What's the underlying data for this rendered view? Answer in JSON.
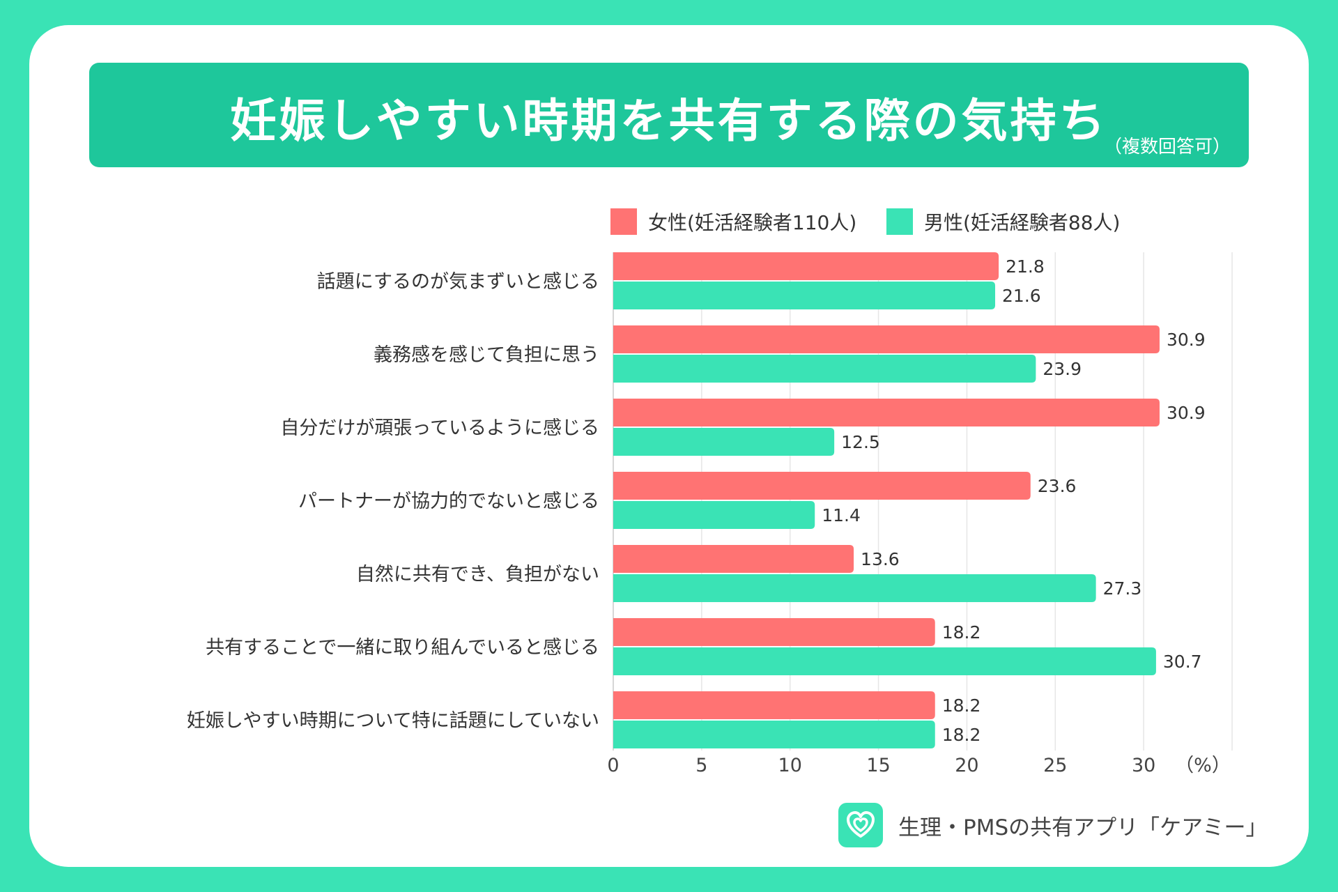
{
  "header": {
    "title": "妊娠しやすい時期を共有する際の気持ち",
    "note": "（複数回答可）"
  },
  "colors": {
    "background": "#3ae3b5",
    "banner": "#1ec79b",
    "female": "#ff7373",
    "male": "#3ae3b5"
  },
  "chart_data": {
    "type": "bar",
    "orientation": "horizontal",
    "categories": [
      "話題にするのが気まずいと感じる",
      "義務感を感じて負担に思う",
      "自分だけが頑張っているように感じる",
      "パートナーが協力的でないと感じる",
      "自然に共有でき、負担がない",
      "共有することで一緒に取り組んでいると感じる",
      "妊娠しやすい時期について特に話題にしていない"
    ],
    "series": [
      {
        "name": "女性(妊活経験者110人)",
        "values": [
          21.8,
          30.9,
          30.9,
          23.6,
          13.6,
          18.2,
          18.2
        ]
      },
      {
        "name": "男性(妊活経験者88人)",
        "values": [
          21.6,
          23.9,
          12.5,
          11.4,
          27.3,
          30.7,
          18.2
        ]
      }
    ],
    "xlim": [
      0,
      35
    ],
    "xticks": [
      "0",
      "5",
      "10",
      "15",
      "20",
      "25",
      "30"
    ],
    "unit_label": "（%）",
    "grid": true,
    "legend_position": "top"
  },
  "footer": {
    "logo_icon": "heart-icon",
    "text": "生理・PMSの共有アプリ「ケアミー」"
  }
}
